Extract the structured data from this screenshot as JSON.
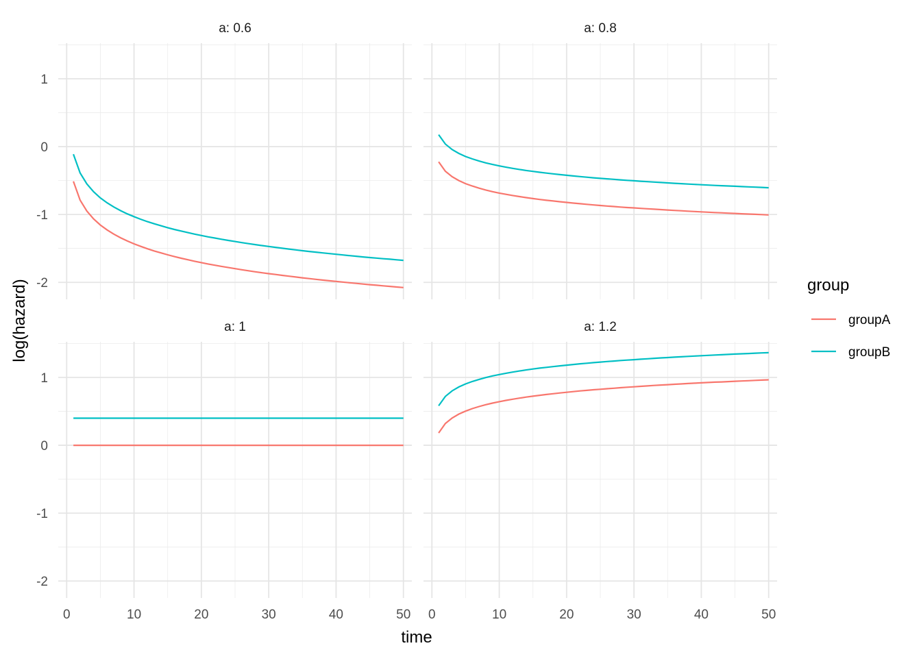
{
  "chart_data": {
    "type": "line",
    "facet_label": "a",
    "xlabel": "time",
    "ylabel": "log(hazard)",
    "xlim": [
      -1.25,
      51.25
    ],
    "ylim": [
      -2.25,
      1.525
    ],
    "x_ticks": [
      0,
      10,
      20,
      30,
      40,
      50
    ],
    "y_ticks": [
      -2,
      -1,
      0,
      1
    ],
    "grid": true,
    "legend": {
      "title": "group",
      "placement": "right"
    },
    "series_colors": {
      "groupA": "#F8766D",
      "groupB": "#00BFC4"
    },
    "x": [
      1,
      2,
      3,
      4,
      5,
      6,
      7,
      8,
      9,
      10,
      11,
      12,
      13,
      14,
      15,
      16,
      17,
      18,
      19,
      20,
      21,
      22,
      23,
      24,
      25,
      26,
      27,
      28,
      29,
      30,
      31,
      32,
      33,
      34,
      35,
      36,
      37,
      38,
      39,
      40,
      41,
      42,
      43,
      44,
      45,
      46,
      47,
      48,
      49,
      50
    ],
    "panels": [
      {
        "title": "a: 0.6",
        "series": [
          {
            "name": "groupA",
            "values": [
              -0.511,
              -0.788,
              -0.95,
              -1.065,
              -1.155,
              -1.228,
              -1.289,
              -1.343,
              -1.39,
              -1.432,
              -1.47,
              -1.505,
              -1.537,
              -1.566,
              -1.594,
              -1.62,
              -1.644,
              -1.667,
              -1.689,
              -1.709,
              -1.729,
              -1.747,
              -1.765,
              -1.782,
              -1.798,
              -1.814,
              -1.829,
              -1.844,
              -1.858,
              -1.871,
              -1.884,
              -1.897,
              -1.909,
              -1.921,
              -1.933,
              -1.944,
              -1.955,
              -1.966,
              -1.976,
              -1.986,
              -1.996,
              -2.006,
              -2.015,
              -2.025,
              -2.034,
              -2.042,
              -2.051,
              -2.059,
              -2.068,
              -2.076
            ]
          },
          {
            "name": "groupB",
            "values": [
              -0.111,
              -0.388,
              -0.55,
              -0.665,
              -0.755,
              -0.828,
              -0.889,
              -0.943,
              -0.99,
              -1.032,
              -1.07,
              -1.105,
              -1.137,
              -1.166,
              -1.194,
              -1.22,
              -1.244,
              -1.267,
              -1.289,
              -1.309,
              -1.329,
              -1.347,
              -1.365,
              -1.382,
              -1.398,
              -1.414,
              -1.429,
              -1.444,
              -1.458,
              -1.471,
              -1.484,
              -1.497,
              -1.509,
              -1.521,
              -1.533,
              -1.544,
              -1.555,
              -1.566,
              -1.576,
              -1.586,
              -1.596,
              -1.606,
              -1.615,
              -1.625,
              -1.634,
              -1.642,
              -1.651,
              -1.659,
              -1.668,
              -1.676
            ]
          }
        ]
      },
      {
        "title": "a: 0.8",
        "series": [
          {
            "name": "groupA",
            "values": [
              -0.223,
              -0.362,
              -0.443,
              -0.5,
              -0.545,
              -0.581,
              -0.612,
              -0.639,
              -0.663,
              -0.684,
              -0.703,
              -0.72,
              -0.736,
              -0.751,
              -0.765,
              -0.778,
              -0.79,
              -0.801,
              -0.812,
              -0.822,
              -0.832,
              -0.841,
              -0.85,
              -0.859,
              -0.867,
              -0.875,
              -0.882,
              -0.89,
              -0.897,
              -0.903,
              -0.91,
              -0.916,
              -0.922,
              -0.928,
              -0.934,
              -0.94,
              -0.945,
              -0.951,
              -0.956,
              -0.961,
              -0.966,
              -0.971,
              -0.975,
              -0.98,
              -0.984,
              -0.989,
              -0.993,
              -0.997,
              -1.001,
              -1.006
            ]
          },
          {
            "name": "groupB",
            "values": [
              0.177,
              0.038,
              -0.043,
              -0.1,
              -0.145,
              -0.181,
              -0.212,
              -0.239,
              -0.263,
              -0.284,
              -0.303,
              -0.32,
              -0.336,
              -0.351,
              -0.365,
              -0.378,
              -0.39,
              -0.401,
              -0.412,
              -0.422,
              -0.432,
              -0.441,
              -0.45,
              -0.459,
              -0.467,
              -0.475,
              -0.482,
              -0.49,
              -0.497,
              -0.503,
              -0.51,
              -0.516,
              -0.522,
              -0.528,
              -0.534,
              -0.54,
              -0.545,
              -0.551,
              -0.556,
              -0.561,
              -0.566,
              -0.571,
              -0.575,
              -0.58,
              -0.584,
              -0.589,
              -0.593,
              -0.597,
              -0.601,
              -0.606
            ]
          }
        ]
      },
      {
        "title": "a: 1",
        "series": [
          {
            "name": "groupA",
            "values": [
              0,
              0,
              0,
              0,
              0,
              0,
              0,
              0,
              0,
              0,
              0,
              0,
              0,
              0,
              0,
              0,
              0,
              0,
              0,
              0,
              0,
              0,
              0,
              0,
              0,
              0,
              0,
              0,
              0,
              0,
              0,
              0,
              0,
              0,
              0,
              0,
              0,
              0,
              0,
              0,
              0,
              0,
              0,
              0,
              0,
              0,
              0,
              0,
              0,
              0
            ]
          },
          {
            "name": "groupB",
            "values": [
              0.4,
              0.4,
              0.4,
              0.4,
              0.4,
              0.4,
              0.4,
              0.4,
              0.4,
              0.4,
              0.4,
              0.4,
              0.4,
              0.4,
              0.4,
              0.4,
              0.4,
              0.4,
              0.4,
              0.4,
              0.4,
              0.4,
              0.4,
              0.4,
              0.4,
              0.4,
              0.4,
              0.4,
              0.4,
              0.4,
              0.4,
              0.4,
              0.4,
              0.4,
              0.4,
              0.4,
              0.4,
              0.4,
              0.4,
              0.4,
              0.4,
              0.4,
              0.4,
              0.4,
              0.4,
              0.4,
              0.4,
              0.4,
              0.4,
              0.4
            ]
          }
        ]
      },
      {
        "title": "a: 1.2",
        "series": [
          {
            "name": "groupA",
            "values": [
              0.182,
              0.321,
              0.402,
              0.46,
              0.504,
              0.541,
              0.571,
              0.598,
              0.622,
              0.643,
              0.662,
              0.679,
              0.695,
              0.71,
              0.724,
              0.737,
              0.749,
              0.76,
              0.771,
              0.781,
              0.791,
              0.801,
              0.809,
              0.818,
              0.826,
              0.834,
              0.841,
              0.849,
              0.856,
              0.862,
              0.869,
              0.875,
              0.882,
              0.888,
              0.893,
              0.899,
              0.904,
              0.91,
              0.915,
              0.92,
              0.925,
              0.93,
              0.934,
              0.939,
              0.944,
              0.948,
              0.952,
              0.957,
              0.961,
              0.965
            ]
          },
          {
            "name": "groupB",
            "values": [
              0.582,
              0.721,
              0.802,
              0.86,
              0.904,
              0.941,
              0.971,
              0.998,
              1.022,
              1.043,
              1.062,
              1.079,
              1.095,
              1.11,
              1.124,
              1.137,
              1.149,
              1.16,
              1.171,
              1.181,
              1.191,
              1.201,
              1.209,
              1.218,
              1.226,
              1.234,
              1.241,
              1.249,
              1.256,
              1.262,
              1.269,
              1.275,
              1.282,
              1.288,
              1.293,
              1.299,
              1.304,
              1.31,
              1.315,
              1.32,
              1.325,
              1.33,
              1.334,
              1.339,
              1.344,
              1.348,
              1.352,
              1.357,
              1.361,
              1.365
            ]
          }
        ]
      }
    ]
  }
}
